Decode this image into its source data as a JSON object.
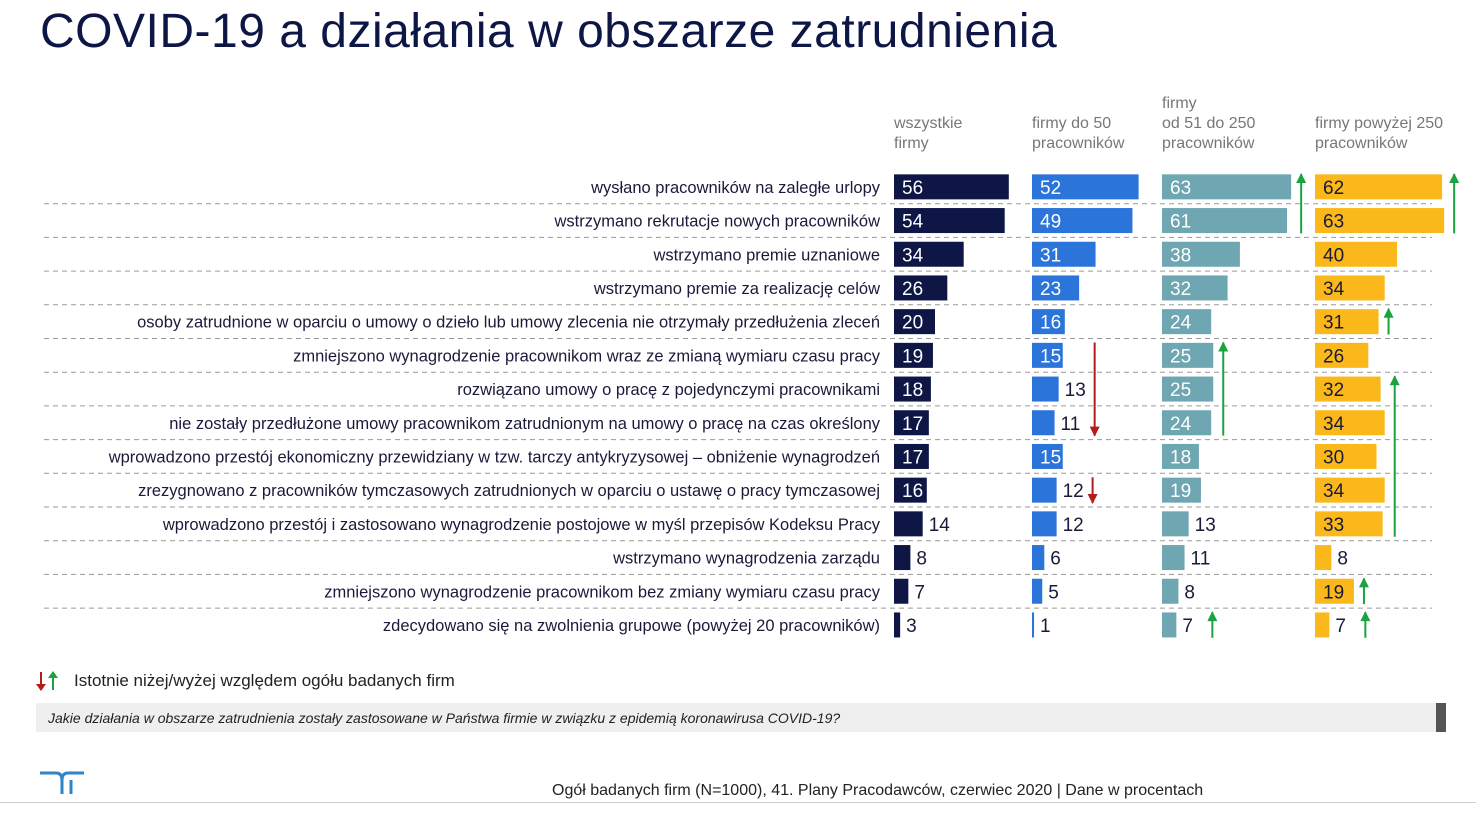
{
  "page": {
    "title": "COVID-19 a działania w obszarze zatrudnienia",
    "legend_text": "Istotnie niżej/wyżej względem ogółu badanych firm",
    "question": "Jakie działania w obszarze zatrudnienia zostały zastosowane w Państwa firmie w związku z epidemią koronawirusa COVID-19?",
    "source": "Ogół badanych firm (N=1000), 41. Plany Pracodawców, czerwiec 2020  | Dane w procentach"
  },
  "chart_data": {
    "type": "bar",
    "orientation": "horizontal",
    "categories": [
      "wysłano pracowników na zaległe urlopy",
      "wstrzymano rekrutacje nowych pracowników",
      "wstrzymano premie uznaniowe",
      "wstrzymano premie za realizację celów",
      "osoby zatrudnione w oparciu o umowy o dzieło lub umowy zlecenia nie otrzymały przedłużenia zleceń",
      "zmniejszono wynagrodzenie pracownikom wraz ze zmianą wymiaru czasu pracy",
      "rozwiązano umowy o pracę z pojedynczymi pracownikami",
      "nie zostały przedłużone umowy pracownikom zatrudnionym na umowy o pracę na czas określony",
      "wprowadzono przestój ekonomiczny przewidziany w tzw. tarczy antykryzysowej – obniżenie wynagrodzeń",
      "zrezygnowano z pracowników tymczasowych zatrudnionych w oparciu o ustawę o pracy tymczasowej",
      "wprowadzono przestój i zastosowano wynagrodzenie postojowe w myśl przepisów Kodeksu Pracy",
      "wstrzymano wynagrodzenia zarządu",
      "zmniejszono wynagrodzenie pracownikom bez zmiany wymiaru czasu pracy",
      "zdecydowano się na zwolnienia grupowe (powyżej 20 pracowników)"
    ],
    "series": [
      {
        "name": "wszystkie firmy",
        "color": "#0d1645",
        "values": [
          56,
          54,
          34,
          26,
          20,
          19,
          18,
          17,
          17,
          16,
          14,
          8,
          7,
          3
        ]
      },
      {
        "name": "firmy do 50 pracowników",
        "color": "#2b74d9",
        "values": [
          52,
          49,
          31,
          23,
          16,
          15,
          13,
          11,
          15,
          12,
          12,
          6,
          5,
          1
        ]
      },
      {
        "name": "firmy od 51 do 250 pracowników",
        "color": "#6ea6b2",
        "values": [
          63,
          61,
          38,
          32,
          24,
          25,
          25,
          24,
          18,
          19,
          13,
          11,
          8,
          7
        ]
      },
      {
        "name": "firmy powyżej 250 pracowników",
        "color": "#fbb81a",
        "values": [
          62,
          63,
          40,
          34,
          31,
          26,
          32,
          34,
          30,
          34,
          33,
          8,
          19,
          7
        ]
      }
    ],
    "significance": [
      {
        "series": 1,
        "rows": [
          5,
          7
        ],
        "direction": "down"
      },
      {
        "series": 1,
        "rows": [
          9,
          9
        ],
        "direction": "down"
      },
      {
        "series": 2,
        "rows": [
          0,
          1
        ],
        "direction": "up"
      },
      {
        "series": 2,
        "rows": [
          5,
          7
        ],
        "direction": "up"
      },
      {
        "series": 2,
        "rows": [
          13,
          13
        ],
        "direction": "up"
      },
      {
        "series": 3,
        "rows": [
          0,
          1
        ],
        "direction": "up"
      },
      {
        "series": 3,
        "rows": [
          4,
          4
        ],
        "direction": "up"
      },
      {
        "series": 3,
        "rows": [
          6,
          10
        ],
        "direction": "up"
      },
      {
        "series": 3,
        "rows": [
          12,
          12
        ],
        "direction": "up"
      },
      {
        "series": 3,
        "rows": [
          13,
          13
        ],
        "direction": "up"
      }
    ],
    "arrow_colors": {
      "up": "#1aa33f",
      "down": "#b21c1c"
    },
    "xlim": [
      0,
      100
    ],
    "legend": "top"
  }
}
